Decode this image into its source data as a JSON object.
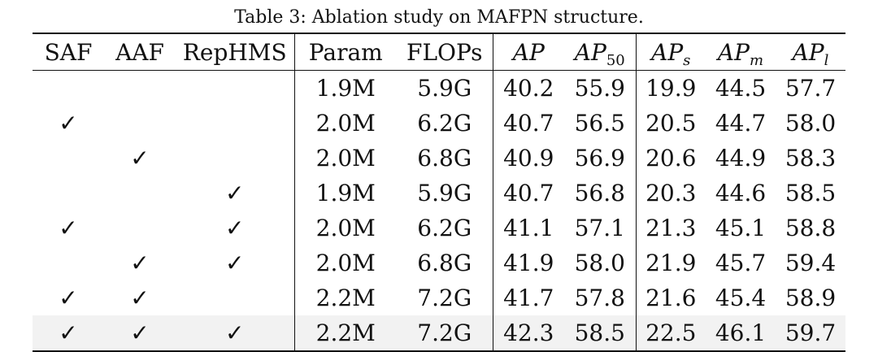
{
  "caption": "Table 3: Ablation study on MAFPN structure.",
  "headers": {
    "saf": "SAF",
    "aaf": "AAF",
    "rephms": "RepHMS",
    "param": "Param",
    "flops": "FLOPs",
    "ap": "AP",
    "ap50_base": "AP",
    "ap50_sub": "50",
    "aps_base": "AP",
    "aps_sub": "s",
    "apm_base": "AP",
    "apm_sub": "m",
    "apl_base": "AP",
    "apl_sub": "l"
  },
  "check_symbol": "✓",
  "rows": [
    {
      "saf": "",
      "aaf": "",
      "rephms": "",
      "param": "1.9M",
      "flops": "5.9G",
      "ap": "40.2",
      "ap50": "55.9",
      "aps": "19.9",
      "apm": "44.5",
      "apl": "57.7"
    },
    {
      "saf": "✓",
      "aaf": "",
      "rephms": "",
      "param": "2.0M",
      "flops": "6.2G",
      "ap": "40.7",
      "ap50": "56.5",
      "aps": "20.5",
      "apm": "44.7",
      "apl": "58.0"
    },
    {
      "saf": "",
      "aaf": "✓",
      "rephms": "",
      "param": "2.0M",
      "flops": "6.8G",
      "ap": "40.9",
      "ap50": "56.9",
      "aps": "20.6",
      "apm": "44.9",
      "apl": "58.3"
    },
    {
      "saf": "",
      "aaf": "",
      "rephms": "✓",
      "param": "1.9M",
      "flops": "5.9G",
      "ap": "40.7",
      "ap50": "56.8",
      "aps": "20.3",
      "apm": "44.6",
      "apl": "58.5"
    },
    {
      "saf": "✓",
      "aaf": "",
      "rephms": "✓",
      "param": "2.0M",
      "flops": "6.2G",
      "ap": "41.1",
      "ap50": "57.1",
      "aps": "21.3",
      "apm": "45.1",
      "apl": "58.8"
    },
    {
      "saf": "",
      "aaf": "✓",
      "rephms": "✓",
      "param": "2.0M",
      "flops": "6.8G",
      "ap": "41.9",
      "ap50": "58.0",
      "aps": "21.9",
      "apm": "45.7",
      "apl": "59.4"
    },
    {
      "saf": "✓",
      "aaf": "✓",
      "rephms": "",
      "param": "2.2M",
      "flops": "7.2G",
      "ap": "41.7",
      "ap50": "57.8",
      "aps": "21.6",
      "apm": "45.4",
      "apl": "58.9"
    },
    {
      "saf": "✓",
      "aaf": "✓",
      "rephms": "✓",
      "param": "2.2M",
      "flops": "7.2G",
      "ap": "42.3",
      "ap50": "58.5",
      "aps": "22.5",
      "apm": "46.1",
      "apl": "59.7"
    }
  ],
  "highlight_row_color": "#f2f2f2"
}
